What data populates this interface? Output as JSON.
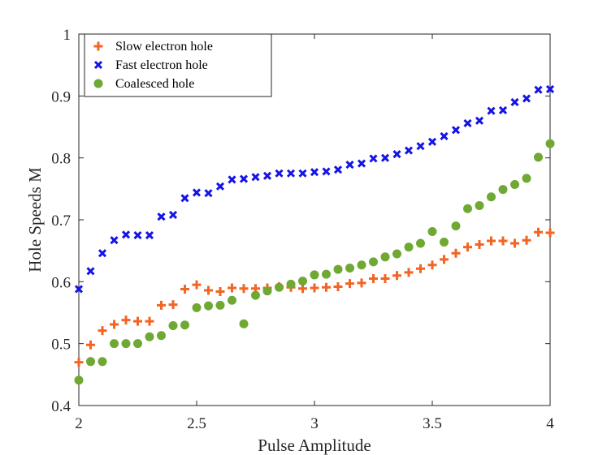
{
  "chart_data": {
    "type": "scatter",
    "title": "",
    "xlabel": "Pulse Amplitude",
    "ylabel": "Hole Speeds M",
    "xlim": [
      2,
      4
    ],
    "ylim": [
      0.4,
      1
    ],
    "xticks": [
      "2",
      "2.5",
      "3",
      "3.5",
      "4"
    ],
    "yticks": [
      "0.4",
      "0.5",
      "0.6",
      "0.7",
      "0.8",
      "0.9",
      "1"
    ],
    "grid": false,
    "legend_position": "top-left",
    "series": [
      {
        "name": "Slow electron hole",
        "marker": "plus",
        "color": "#f26522",
        "points": [
          [
            2.0,
            0.47
          ],
          [
            2.05,
            0.498
          ],
          [
            2.1,
            0.521
          ],
          [
            2.15,
            0.531
          ],
          [
            2.2,
            0.538
          ],
          [
            2.25,
            0.536
          ],
          [
            2.3,
            0.536
          ],
          [
            2.35,
            0.562
          ],
          [
            2.4,
            0.563
          ],
          [
            2.45,
            0.588
          ],
          [
            2.5,
            0.595
          ],
          [
            2.55,
            0.586
          ],
          [
            2.6,
            0.584
          ],
          [
            2.65,
            0.59
          ],
          [
            2.7,
            0.589
          ],
          [
            2.75,
            0.589
          ],
          [
            2.8,
            0.59
          ],
          [
            2.85,
            0.592
          ],
          [
            2.9,
            0.591
          ],
          [
            2.95,
            0.589
          ],
          [
            3.0,
            0.59
          ],
          [
            3.05,
            0.591
          ],
          [
            3.1,
            0.592
          ],
          [
            3.15,
            0.597
          ],
          [
            3.2,
            0.598
          ],
          [
            3.25,
            0.605
          ],
          [
            3.3,
            0.605
          ],
          [
            3.35,
            0.61
          ],
          [
            3.4,
            0.615
          ],
          [
            3.45,
            0.621
          ],
          [
            3.5,
            0.627
          ],
          [
            3.55,
            0.636
          ],
          [
            3.6,
            0.646
          ],
          [
            3.65,
            0.656
          ],
          [
            3.7,
            0.66
          ],
          [
            3.75,
            0.666
          ],
          [
            3.8,
            0.666
          ],
          [
            3.85,
            0.662
          ],
          [
            3.9,
            0.667
          ],
          [
            3.95,
            0.68
          ],
          [
            4.0,
            0.679
          ]
        ]
      },
      {
        "name": "Fast electron hole",
        "marker": "x",
        "color": "#1414e6",
        "points": [
          [
            2.0,
            0.588
          ],
          [
            2.05,
            0.617
          ],
          [
            2.1,
            0.646
          ],
          [
            2.15,
            0.667
          ],
          [
            2.2,
            0.676
          ],
          [
            2.25,
            0.675
          ],
          [
            2.3,
            0.675
          ],
          [
            2.35,
            0.705
          ],
          [
            2.4,
            0.708
          ],
          [
            2.45,
            0.735
          ],
          [
            2.5,
            0.744
          ],
          [
            2.55,
            0.743
          ],
          [
            2.6,
            0.754
          ],
          [
            2.65,
            0.765
          ],
          [
            2.7,
            0.766
          ],
          [
            2.75,
            0.769
          ],
          [
            2.8,
            0.771
          ],
          [
            2.85,
            0.775
          ],
          [
            2.9,
            0.775
          ],
          [
            2.95,
            0.775
          ],
          [
            3.0,
            0.777
          ],
          [
            3.05,
            0.778
          ],
          [
            3.1,
            0.781
          ],
          [
            3.15,
            0.789
          ],
          [
            3.2,
            0.791
          ],
          [
            3.25,
            0.799
          ],
          [
            3.3,
            0.8
          ],
          [
            3.35,
            0.806
          ],
          [
            3.4,
            0.812
          ],
          [
            3.45,
            0.819
          ],
          [
            3.5,
            0.826
          ],
          [
            3.55,
            0.835
          ],
          [
            3.6,
            0.845
          ],
          [
            3.65,
            0.856
          ],
          [
            3.7,
            0.86
          ],
          [
            3.75,
            0.876
          ],
          [
            3.8,
            0.877
          ],
          [
            3.85,
            0.89
          ],
          [
            3.9,
            0.896
          ],
          [
            3.95,
            0.91
          ],
          [
            4.0,
            0.911
          ]
        ]
      },
      {
        "name": "Coalesced hole",
        "marker": "circle",
        "color": "#6fa832",
        "points": [
          [
            2.0,
            0.441
          ],
          [
            2.05,
            0.471
          ],
          [
            2.1,
            0.471
          ],
          [
            2.15,
            0.5
          ],
          [
            2.2,
            0.5
          ],
          [
            2.25,
            0.5
          ],
          [
            2.3,
            0.511
          ],
          [
            2.35,
            0.513
          ],
          [
            2.4,
            0.529
          ],
          [
            2.45,
            0.53
          ],
          [
            2.5,
            0.558
          ],
          [
            2.55,
            0.561
          ],
          [
            2.6,
            0.562
          ],
          [
            2.65,
            0.57
          ],
          [
            2.7,
            0.532
          ],
          [
            2.75,
            0.578
          ],
          [
            2.8,
            0.585
          ],
          [
            2.85,
            0.591
          ],
          [
            2.9,
            0.596
          ],
          [
            2.95,
            0.601
          ],
          [
            3.0,
            0.611
          ],
          [
            3.05,
            0.612
          ],
          [
            3.1,
            0.62
          ],
          [
            3.15,
            0.622
          ],
          [
            3.2,
            0.627
          ],
          [
            3.25,
            0.632
          ],
          [
            3.3,
            0.64
          ],
          [
            3.35,
            0.645
          ],
          [
            3.4,
            0.656
          ],
          [
            3.45,
            0.662
          ],
          [
            3.5,
            0.681
          ],
          [
            3.55,
            0.664
          ],
          [
            3.6,
            0.69
          ],
          [
            3.65,
            0.718
          ],
          [
            3.7,
            0.723
          ],
          [
            3.75,
            0.737
          ],
          [
            3.8,
            0.749
          ],
          [
            3.85,
            0.757
          ],
          [
            3.9,
            0.767
          ],
          [
            3.95,
            0.801
          ],
          [
            4.0,
            0.823
          ]
        ]
      }
    ]
  }
}
